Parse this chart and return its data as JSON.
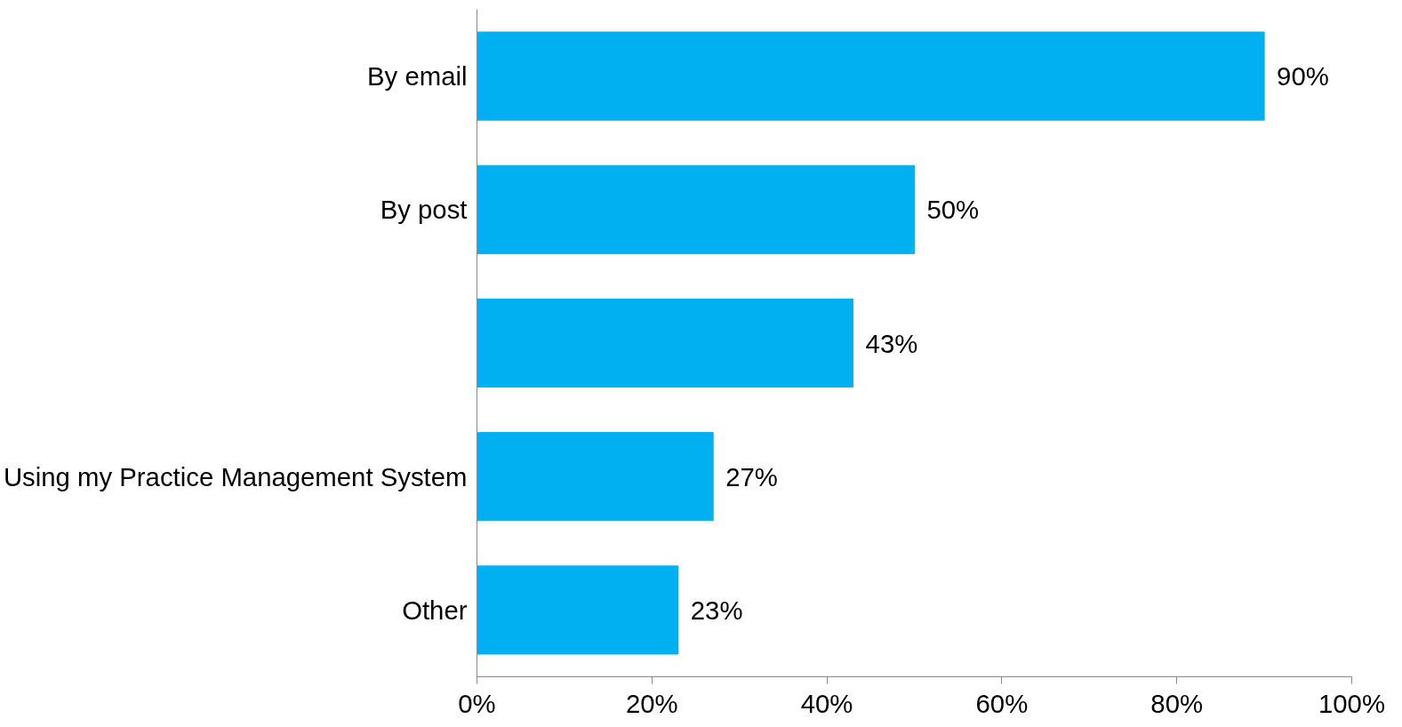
{
  "chart_data": {
    "type": "bar",
    "orientation": "horizontal",
    "categories": [
      "By email",
      "By post",
      null,
      "Using my Practice Management System",
      "Other"
    ],
    "values": [
      90,
      50,
      43,
      27,
      23
    ],
    "value_labels": [
      "90%",
      "50%",
      "43%",
      "27%",
      "23%"
    ],
    "color": "#00b0f0",
    "xlim": [
      0,
      100
    ],
    "xticks": [
      {
        "value": 0,
        "label": "0%"
      },
      {
        "value": 20,
        "label": "20%"
      },
      {
        "value": 40,
        "label": "40%"
      },
      {
        "value": 60,
        "label": "60%"
      },
      {
        "value": 80,
        "label": "80%"
      },
      {
        "value": 100,
        "label": "100%"
      }
    ],
    "grid": false
  }
}
